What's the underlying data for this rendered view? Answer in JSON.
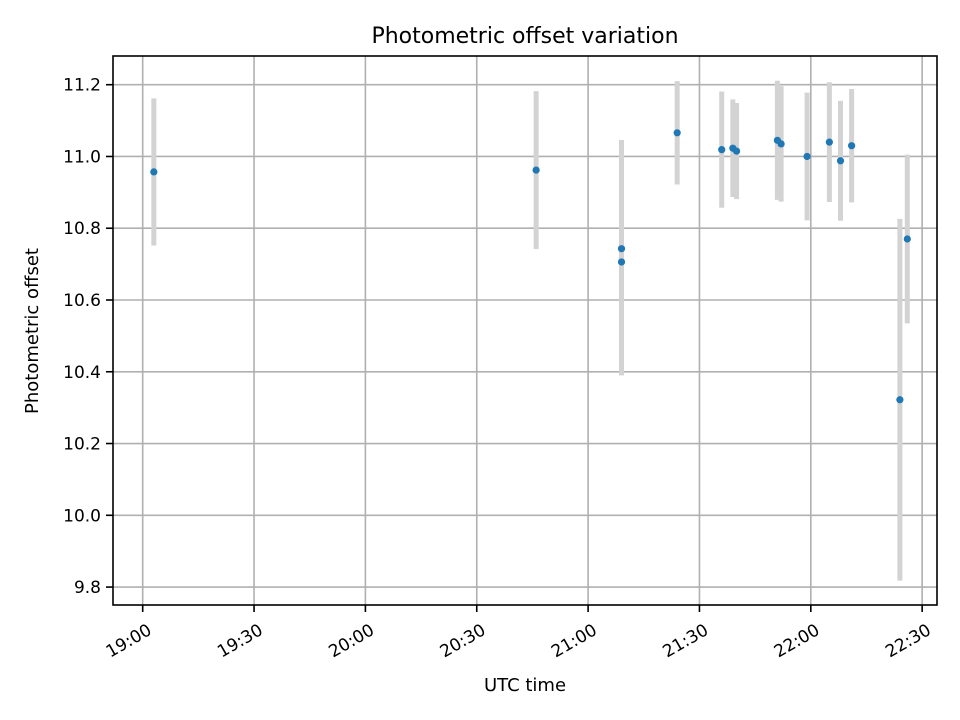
{
  "chart_data": {
    "type": "scatter",
    "title": "Photometric offset variation",
    "xlabel": "UTC time",
    "ylabel": "Photometric offset",
    "x_axis_type": "time",
    "xlim": [
      "18:52",
      "22:34"
    ],
    "ylim": [
      9.75,
      11.28
    ],
    "x_ticks": [
      "19:00",
      "19:30",
      "20:00",
      "20:30",
      "21:00",
      "21:30",
      "22:00",
      "22:30"
    ],
    "y_ticks": [
      9.8,
      10.0,
      10.2,
      10.4,
      10.6,
      10.8,
      11.0,
      11.2
    ],
    "grid": true,
    "legend": "none",
    "point_color": "#1f77b4",
    "errorbar_color": "#d3d3d3",
    "points": [
      {
        "time": "19:03",
        "y": 10.957,
        "err_low": 10.752,
        "err_high": 11.162
      },
      {
        "time": "20:46",
        "y": 10.962,
        "err_low": 10.742,
        "err_high": 11.182
      },
      {
        "time": "21:09",
        "y": 10.706,
        "err_low": 10.39,
        "err_high": 11.022
      },
      {
        "time": "21:09",
        "y": 10.743,
        "err_low": 10.44,
        "err_high": 11.046
      },
      {
        "time": "21:24",
        "y": 11.066,
        "err_low": 10.922,
        "err_high": 11.21
      },
      {
        "time": "21:36",
        "y": 11.019,
        "err_low": 10.857,
        "err_high": 11.181
      },
      {
        "time": "21:39",
        "y": 11.023,
        "err_low": 10.887,
        "err_high": 11.159
      },
      {
        "time": "21:40",
        "y": 11.015,
        "err_low": 10.881,
        "err_high": 11.149
      },
      {
        "time": "21:51",
        "y": 11.045,
        "err_low": 10.879,
        "err_high": 11.211
      },
      {
        "time": "21:52",
        "y": 11.035,
        "err_low": 10.874,
        "err_high": 11.196
      },
      {
        "time": "21:59",
        "y": 11.0,
        "err_low": 10.822,
        "err_high": 11.178
      },
      {
        "time": "22:05",
        "y": 11.04,
        "err_low": 10.873,
        "err_high": 11.207
      },
      {
        "time": "22:08",
        "y": 10.988,
        "err_low": 10.821,
        "err_high": 11.155
      },
      {
        "time": "22:11",
        "y": 11.03,
        "err_low": 10.872,
        "err_high": 11.188
      },
      {
        "time": "22:24",
        "y": 10.322,
        "err_low": 9.818,
        "err_high": 10.826
      },
      {
        "time": "22:26",
        "y": 10.77,
        "err_low": 10.535,
        "err_high": 11.005
      }
    ]
  }
}
